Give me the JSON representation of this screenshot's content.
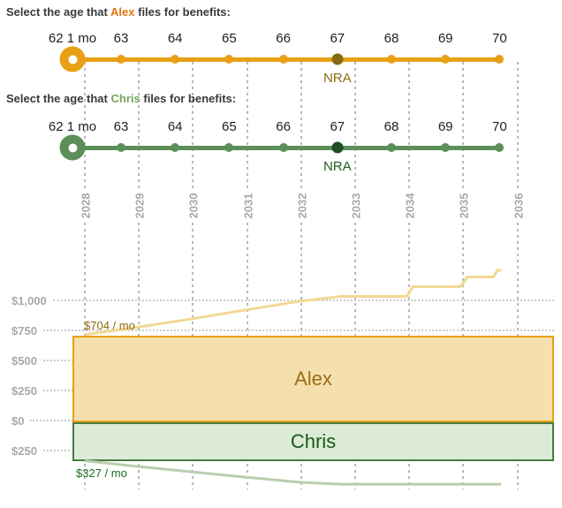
{
  "sliders": [
    {
      "id": "alex",
      "label_prefix": "Select the age that",
      "person": "Alex",
      "label_suffix": "files for benefits:",
      "person_color": "#e0770f",
      "track_color": "#e8a014",
      "nra_dot_color": "#8a6a10",
      "nra_text_color": "#8a6d12",
      "ages": [
        "62 1 mo",
        "63",
        "64",
        "65",
        "66",
        "67",
        "68",
        "69",
        "70"
      ],
      "selected_age": "62 1 mo",
      "selected_index": 0,
      "nra_index": 5,
      "nra_label": "NRA"
    },
    {
      "id": "chris",
      "label_prefix": "Select the age that",
      "person": "Chris",
      "label_suffix": "files for benefits:",
      "person_color": "#74a25f",
      "track_color": "#5b8e59",
      "nra_dot_color": "#1d4d20",
      "nra_text_color": "#1d5c1d",
      "ages": [
        "62 1 mo",
        "63",
        "64",
        "65",
        "66",
        "67",
        "68",
        "69",
        "70"
      ],
      "selected_age": "62 1 mo",
      "selected_index": 0,
      "nra_index": 5,
      "nra_label": "NRA"
    }
  ],
  "chart_data": {
    "type": "area",
    "x_years": [
      2028,
      2029,
      2030,
      2031,
      2032,
      2033,
      2034,
      2035,
      2036
    ],
    "x_range": [
      2028,
      2036
    ],
    "grid": "dashed-vertical, dotted-horizontal",
    "y_ticks": [
      {
        "label": "$1,000",
        "value": 1000
      },
      {
        "label": "$750",
        "value": 750
      },
      {
        "label": "$500",
        "value": 500
      },
      {
        "label": "$250",
        "value": 250
      },
      {
        "label": "$0",
        "value": 0
      },
      {
        "label": "$250",
        "value": -250
      }
    ],
    "bands": [
      {
        "label": "Alex",
        "from_value": 704,
        "to_value": 0,
        "fill": "#f5dfad",
        "border": "#e8a014",
        "text_color": "#9a6f14"
      },
      {
        "label": "Chris",
        "from_value": 0,
        "to_value": -327,
        "fill": "#dcebd6",
        "border": "#4a7b41",
        "text_color": "#155917"
      }
    ],
    "series": [
      {
        "name": "alex-benefit-if-delayed",
        "color": "#f2d894",
        "points": [
          [
            2028.0,
            715
          ],
          [
            2029.0,
            779
          ],
          [
            2030.0,
            848
          ],
          [
            2031.0,
            922
          ],
          [
            2032.0,
            995
          ],
          [
            2032.75,
            1033
          ],
          [
            2033.95,
            1033
          ],
          [
            2034.07,
            1114
          ],
          [
            2034.95,
            1114
          ],
          [
            2035.07,
            1195
          ],
          [
            2035.55,
            1195
          ],
          [
            2035.63,
            1250
          ],
          [
            2035.7,
            1250
          ]
        ]
      },
      {
        "name": "chris-benefit-if-delayed",
        "color": "#b9cead",
        "points": [
          [
            2028.0,
            -335
          ],
          [
            2029.0,
            -383
          ],
          [
            2030.0,
            -428
          ],
          [
            2031.0,
            -473
          ],
          [
            2032.0,
            -515
          ],
          [
            2032.75,
            -530
          ],
          [
            2035.7,
            -530
          ]
        ]
      }
    ],
    "annotations": [
      {
        "text": "$704 / mo",
        "series": "alex",
        "value": 704,
        "color": "#8f6b10"
      },
      {
        "text": "$327 / mo",
        "series": "chris",
        "value": -327,
        "color": "#1d6b1d"
      }
    ]
  }
}
